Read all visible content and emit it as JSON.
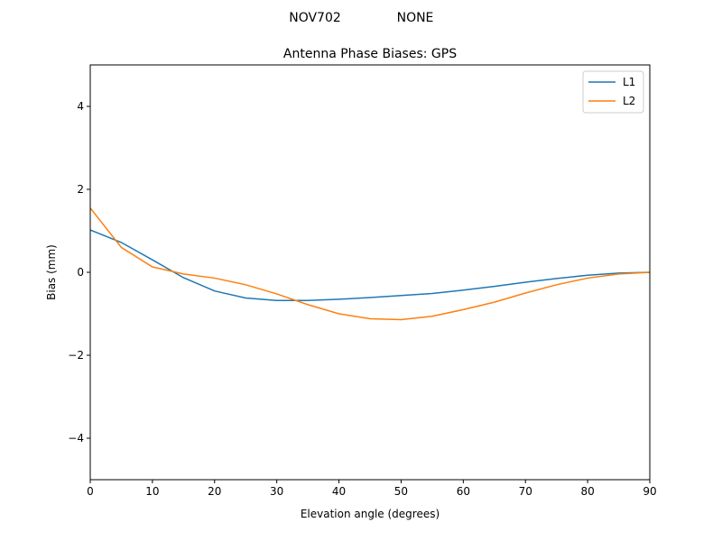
{
  "chart_data": {
    "type": "line",
    "suptitle_left": "NOV702",
    "suptitle_right": "NONE",
    "title": "Antenna Phase Biases: GPS",
    "xlabel": "Elevation angle (degrees)",
    "ylabel": "Bias (mm)",
    "xlim": [
      0,
      90
    ],
    "ylim": [
      -5,
      5
    ],
    "xticks": [
      0,
      10,
      20,
      30,
      40,
      50,
      60,
      70,
      80,
      90
    ],
    "yticks": [
      -4,
      -2,
      0,
      2,
      4
    ],
    "ytick_labels": [
      "−4",
      "−2",
      "0",
      "2",
      "4"
    ],
    "grid": false,
    "legend_position": "top-right",
    "x": [
      0,
      5,
      10,
      15,
      20,
      25,
      30,
      35,
      40,
      45,
      50,
      55,
      60,
      65,
      70,
      75,
      80,
      85,
      90
    ],
    "series": [
      {
        "name": "L1",
        "color": "#1f77b4",
        "values": [
          1.02,
          0.72,
          0.3,
          -0.13,
          -0.45,
          -0.62,
          -0.68,
          -0.68,
          -0.65,
          -0.61,
          -0.56,
          -0.51,
          -0.43,
          -0.34,
          -0.24,
          -0.15,
          -0.07,
          -0.02,
          0.0
        ]
      },
      {
        "name": "L2",
        "color": "#ff7f0e",
        "values": [
          1.55,
          0.6,
          0.13,
          -0.04,
          -0.14,
          -0.3,
          -0.52,
          -0.78,
          -1.0,
          -1.12,
          -1.14,
          -1.06,
          -0.9,
          -0.72,
          -0.5,
          -0.3,
          -0.14,
          -0.04,
          0.0
        ]
      }
    ]
  }
}
